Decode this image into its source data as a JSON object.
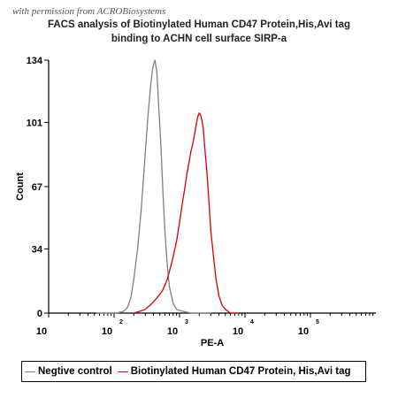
{
  "watermark": "with permission from ACROBiosystems",
  "chart_data": {
    "type": "line",
    "title_line1": "FACS analysis of Biotinylated Human CD47 Protein,His,Avi tag",
    "title_line2": "binding to ACHN cell surface SIRP-a",
    "xlabel": "PE-A",
    "ylabel": "Count",
    "x_scale": "log",
    "xlim": [
      10,
      1000000
    ],
    "ylim": [
      0,
      134
    ],
    "yticks": [
      "0",
      "34",
      "67",
      "101",
      "134"
    ],
    "xtick_labels": [
      {
        "base": "10",
        "exp": ""
      },
      {
        "base": "10",
        "exp": "2"
      },
      {
        "base": "10",
        "exp": "3"
      },
      {
        "base": "10",
        "exp": "4"
      },
      {
        "base": "10",
        "exp": "5"
      }
    ],
    "grid": false,
    "legend_position": "bottom",
    "series": [
      {
        "name": "Negtive control",
        "color": "#808080",
        "x": [
          55,
          80,
          110,
          140,
          160,
          180,
          200,
          230,
          260,
          300,
          330,
          360,
          390,
          420,
          450,
          480,
          520,
          560,
          600,
          650,
          700,
          800,
          900,
          1100,
          1500,
          3000
        ],
        "y": [
          0,
          0,
          0,
          1,
          3,
          8,
          18,
          35,
          55,
          85,
          105,
          120,
          130,
          134,
          128,
          110,
          88,
          62,
          42,
          25,
          14,
          5,
          2,
          1,
          0,
          0
        ]
      },
      {
        "name": "Biotinylated Human CD47 Protein, His,Avi tag",
        "color": "#dd0000",
        "x": [
          200,
          250,
          300,
          350,
          400,
          450,
          500,
          550,
          600,
          650,
          700,
          750,
          800,
          900,
          1000,
          1100,
          1200,
          1300,
          1400,
          1500,
          1600,
          1700,
          1800,
          1900,
          2000,
          2100,
          2200,
          2300,
          2400,
          2600,
          2800,
          3000,
          3300,
          3600,
          4000,
          4500,
          5000,
          6000,
          8000
        ],
        "y": [
          0,
          1,
          2,
          4,
          6,
          8,
          10,
          12,
          15,
          18,
          22,
          26,
          30,
          38,
          48,
          58,
          66,
          74,
          80,
          86,
          90,
          95,
          100,
          104,
          106,
          105,
          102,
          98,
          90,
          76,
          60,
          44,
          30,
          18,
          9,
          4,
          2,
          0,
          0
        ]
      }
    ]
  }
}
